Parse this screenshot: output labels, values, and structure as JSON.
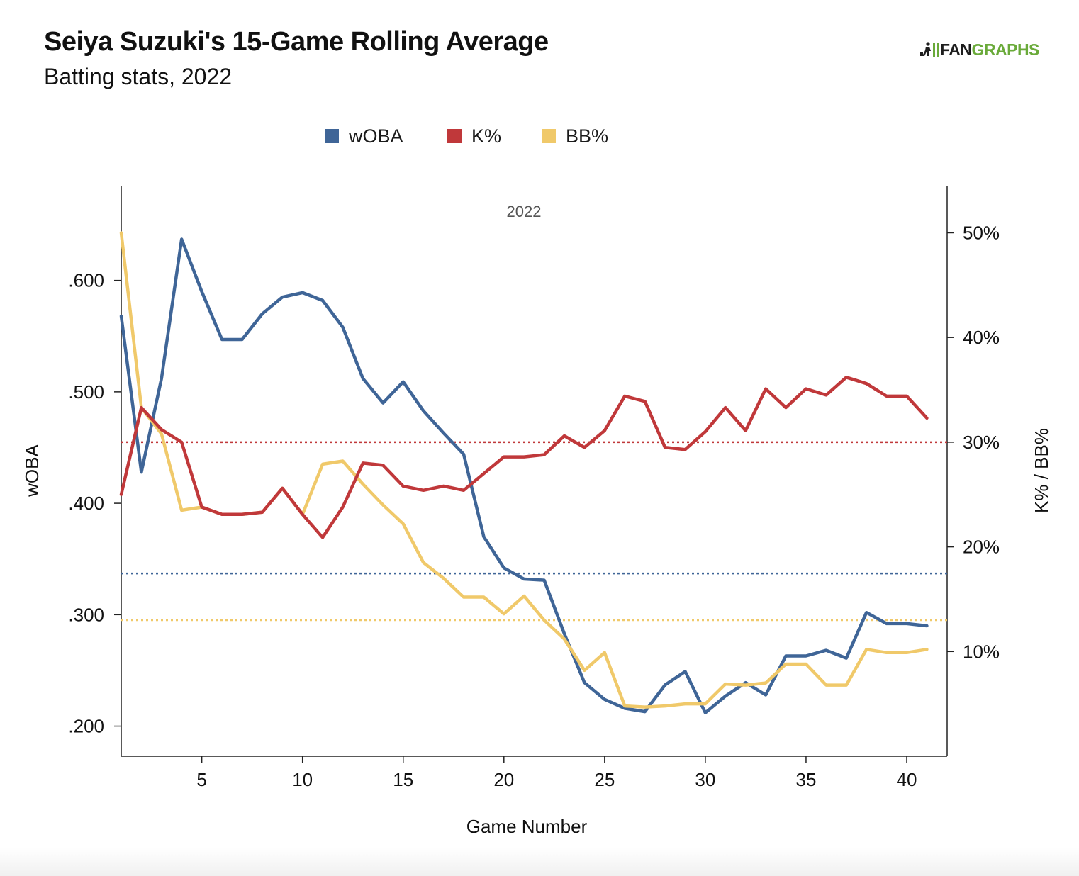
{
  "header": {
    "title": "Seiya Suzuki's 15-Game Rolling Average",
    "subtitle": "Batting stats, 2022"
  },
  "logo": {
    "text_part1": "FAN",
    "text_part2": "GRAPHS",
    "color_dark": "#1e1e1e",
    "color_green": "#6aaa3a"
  },
  "legend": [
    {
      "label": "wOBA",
      "color": "#3f6597"
    },
    {
      "label": "K%",
      "color": "#c0383a"
    },
    {
      "label": "BB%",
      "color": "#f0c96a"
    }
  ],
  "chart_data": {
    "type": "line",
    "season_label": "2022",
    "xlabel": "Game Number",
    "ylabel_left": "wOBA",
    "ylabel_right": "K% / BB%",
    "xlim": [
      1,
      42
    ],
    "x_ticks": [
      5,
      10,
      15,
      20,
      25,
      30,
      35,
      40
    ],
    "ylim_left": [
      0.173,
      0.685
    ],
    "y_ticks_left": [
      ".200",
      ".300",
      ".400",
      ".500",
      ".600"
    ],
    "y_tick_values_left": [
      0.2,
      0.3,
      0.4,
      0.5,
      0.6
    ],
    "ylim_right": [
      0.0,
      0.545
    ],
    "y_ticks_right": [
      "10%",
      "20%",
      "30%",
      "40%",
      "50%"
    ],
    "y_tick_values_right": [
      0.1,
      0.2,
      0.3,
      0.4,
      0.5
    ],
    "grid": false,
    "legend_position": "top-center",
    "x": [
      1,
      2,
      3,
      4,
      5,
      6,
      7,
      8,
      9,
      10,
      11,
      12,
      13,
      14,
      15,
      16,
      17,
      18,
      19,
      20,
      21,
      22,
      23,
      24,
      25,
      26,
      27,
      28,
      29,
      30,
      31,
      32,
      33,
      34,
      35,
      36,
      37,
      38,
      39,
      40,
      41
    ],
    "series": [
      {
        "name": "wOBA",
        "axis": "left",
        "color": "#3f6597",
        "values": [
          0.568,
          0.428,
          0.512,
          0.637,
          0.59,
          0.547,
          0.547,
          0.57,
          0.585,
          0.589,
          0.582,
          0.558,
          0.512,
          0.49,
          0.509,
          0.483,
          0.463,
          0.444,
          0.37,
          0.342,
          0.332,
          0.331,
          0.283,
          0.239,
          0.224,
          0.216,
          0.213,
          0.237,
          0.249,
          0.212,
          0.227,
          0.239,
          0.228,
          0.263,
          0.263,
          0.268,
          0.261,
          0.302,
          0.292,
          0.292,
          0.29
        ]
      },
      {
        "name": "K%",
        "axis": "right",
        "color": "#c0383a",
        "values": [
          0.25,
          0.333,
          0.312,
          0.3,
          0.238,
          0.231,
          0.231,
          0.233,
          0.256,
          0.231,
          0.209,
          0.238,
          0.28,
          0.278,
          0.258,
          0.254,
          0.258,
          0.254,
          0.27,
          0.286,
          0.286,
          0.288,
          0.306,
          0.295,
          0.311,
          0.344,
          0.339,
          0.295,
          0.293,
          0.31,
          0.333,
          0.311,
          0.351,
          0.333,
          0.351,
          0.345,
          0.362,
          0.356,
          0.344,
          0.344,
          0.323
        ]
      },
      {
        "name": "BB%",
        "axis": "right",
        "color": "#f0c96a",
        "values": [
          0.5,
          0.333,
          0.308,
          0.235,
          0.238,
          0.231,
          0.231,
          0.233,
          0.256,
          0.231,
          0.279,
          0.282,
          0.26,
          0.24,
          0.222,
          0.185,
          0.17,
          0.152,
          0.152,
          0.136,
          0.153,
          0.13,
          0.112,
          0.082,
          0.099,
          0.048,
          0.047,
          0.048,
          0.05,
          0.05,
          0.069,
          0.068,
          0.07,
          0.088,
          0.088,
          0.068,
          0.068,
          0.102,
          0.099,
          0.099,
          0.102
        ]
      }
    ],
    "reference_lines": [
      {
        "series": "wOBA",
        "axis": "left",
        "value": 0.337,
        "color": "#3f6597"
      },
      {
        "series": "K%",
        "axis": "right",
        "value": 0.3,
        "color": "#c0383a"
      },
      {
        "series": "BB%",
        "axis": "right",
        "value": 0.13,
        "color": "#f0c96a"
      }
    ]
  }
}
